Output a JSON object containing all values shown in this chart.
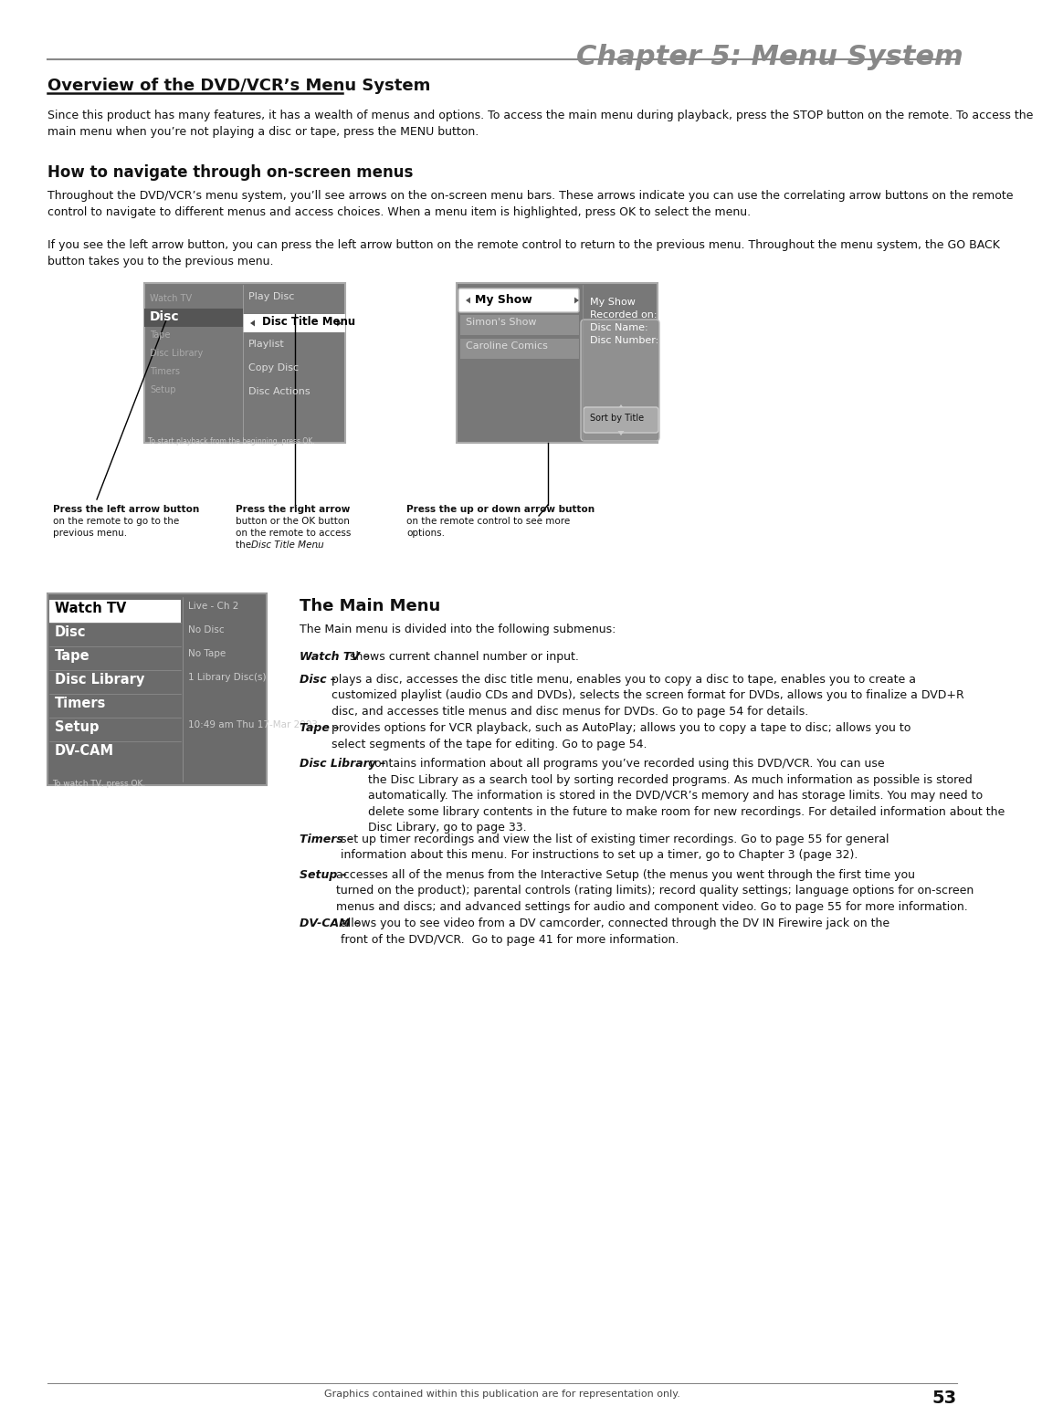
{
  "page_bg": "#ffffff",
  "chapter_title": "Chapter 5: Menu System",
  "section_title": "Overview of the DVD/VCR’s Menu System",
  "subsection1": "How to navigate through on-screen menus",
  "para1": "Since this product has many features, it has a wealth of menus and options. To access the main menu during playback, press the STOP button on the remote. To access the\nmain menu when you’re not playing a disc or tape, press the MENU button.",
  "para2": "Throughout the DVD/VCR’s menu system, you’ll see arrows on the on-screen menu bars. These arrows indicate you can use the correlating arrow buttons on the remote\ncontrol to navigate to different menus and access choices. When a menu item is highlighted, press OK to select the menu.",
  "para3": "If you see the left arrow button, you can press the left arrow button on the remote control to return to the previous menu. Throughout the menu system, the GO BACK\nbutton takes you to the previous menu.",
  "menu_section_title": "The Main Menu",
  "menu_intro": "The Main menu is divided into the following submenus:",
  "main_menu_items": [
    "Watch TV",
    "Disc",
    "Tape",
    "Disc Library",
    "Timers",
    "Setup",
    "DV-CAM"
  ],
  "main_menu_values": [
    "Live - Ch 2",
    "No Disc",
    "No Tape",
    "1 Library Disc(s)",
    "",
    "10:49 am Thu 17-Mar 2003",
    ""
  ],
  "main_menu_note": "To watch TV, press OK.",
  "menu_bg": "#6b6b6b",
  "menu_selected_bg": "#ffffff",
  "menu_selected_fg": "#000000",
  "menu_item_fg": "#ffffff",
  "menu_value_fg": "#cccccc",
  "footer_text": "Graphics contained within this publication are for representation only.",
  "page_number": "53",
  "body_descriptions": [
    [
      "Watch TV – ",
      "shows current channel number or input."
    ],
    [
      "Disc – ",
      "plays a disc, accesses the disc title menu, enables you to copy a disc to tape, enables you to create a\ncustomized playlist (audio CDs and DVDs), selects the screen format for DVDs, allows you to finalize a DVD+R\ndisc, and accesses title menus and disc menus for DVDs. Go to page 54 for details."
    ],
    [
      "Tape – ",
      "provides options for VCR playback, such as AutoPlay; allows you to copy a tape to disc; allows you to\nselect segments of the tape for editing. Go to page 54."
    ],
    [
      "Disc Library – ",
      "contains information about all programs you’ve recorded using this DVD/VCR. You can use\nthe Disc Library as a search tool by sorting recorded programs. As much information as possible is stored\nautomatically. The information is stored in the DVD/VCR’s memory and has storage limits. You may need to\ndelete some library contents in the future to make room for new recordings. For detailed information about the\nDisc Library, go to page 33."
    ],
    [
      "Timers – ",
      "set up timer recordings and view the list of existing timer recordings. Go to page 55 for general\ninformation about this menu. For instructions to set up a timer, go to Chapter 3 (page 32)."
    ],
    [
      "Setup – ",
      "accesses all of the menus from the Interactive Setup (the menus you went through the first time you\nturned on the product); parental controls (rating limits); record quality settings; language options for on-screen\nmenus and discs; and advanced settings for audio and component video. Go to page 55 for more information."
    ],
    [
      "DV-CAM – ",
      "allows you to see video from a DV camcorder, connected through the DV IN Firewire jack on the\nfront of the DVD/VCR.  Go to page 41 for more information."
    ]
  ]
}
